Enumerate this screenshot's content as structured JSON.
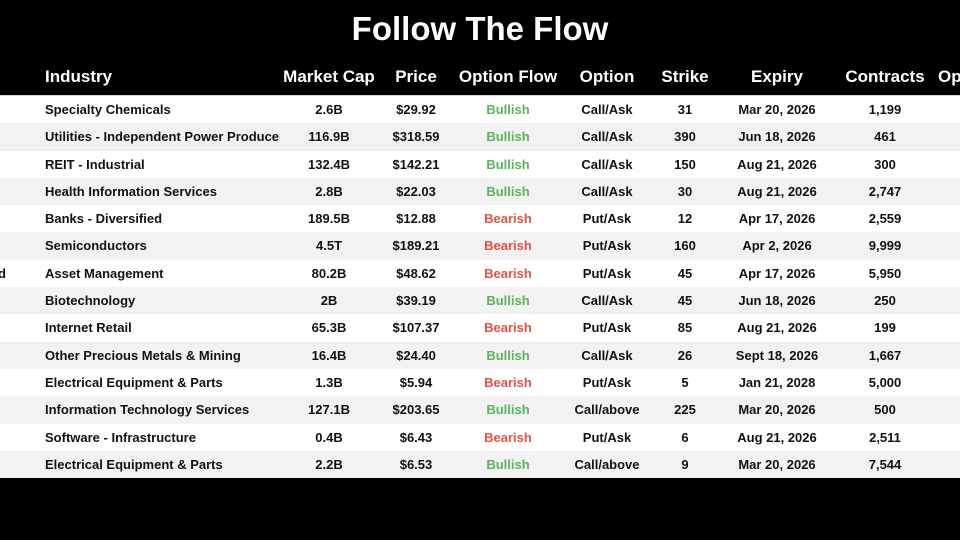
{
  "title": "Follow The Flow",
  "colors": {
    "bullish": "#5cb35c",
    "bearish": "#e0534a",
    "background": "#000000",
    "row_alt": "#f2f2f2"
  },
  "headers": {
    "industry": "Industry",
    "market_cap": "Market Cap",
    "price": "Price",
    "option_flow": "Option Flow",
    "option": "Option",
    "strike": "Strike",
    "expiry": "Expiry",
    "contracts": "Contracts",
    "partial_next": "Op"
  },
  "rows": [
    {
      "left": "",
      "industry": "Specialty Chemicals",
      "market_cap": "2.6B",
      "price": "$29.92",
      "flow": "Bullish",
      "option": "Call/Ask",
      "strike": "31",
      "expiry": "Mar 20, 2026",
      "contracts": "1,199"
    },
    {
      "left": "",
      "industry": "Utilities - Independent Power Producer",
      "market_cap": "116.9B",
      "price": "$318.59",
      "flow": "Bullish",
      "option": "Call/Ask",
      "strike": "390",
      "expiry": "Jun 18, 2026",
      "contracts": "461"
    },
    {
      "left": "",
      "industry": "REIT - Industrial",
      "market_cap": "132.4B",
      "price": "$142.21",
      "flow": "Bullish",
      "option": "Call/Ask",
      "strike": "150",
      "expiry": "Aug 21, 2026",
      "contracts": "300"
    },
    {
      "left": "",
      "industry": "Health Information Services",
      "market_cap": "2.8B",
      "price": "$22.03",
      "flow": "Bullish",
      "option": "Call/Ask",
      "strike": "30",
      "expiry": "Aug 21, 2026",
      "contracts": "2,747"
    },
    {
      "left": "",
      "industry": "Banks - Diversified",
      "market_cap": "189.5B",
      "price": "$12.88",
      "flow": "Bearish",
      "option": "Put/Ask",
      "strike": "12",
      "expiry": "Apr 17, 2026",
      "contracts": "2,559"
    },
    {
      "left": "",
      "industry": "Semiconductors",
      "market_cap": "4.5T",
      "price": "$189.21",
      "flow": "Bearish",
      "option": "Put/Ask",
      "strike": "160",
      "expiry": "Apr 2, 2026",
      "contracts": "9,999"
    },
    {
      "left": "d",
      "industry": "Asset Management",
      "market_cap": "80.2B",
      "price": "$48.62",
      "flow": "Bearish",
      "option": "Put/Ask",
      "strike": "45",
      "expiry": "Apr 17, 2026",
      "contracts": "5,950"
    },
    {
      "left": "",
      "industry": "Biotechnology",
      "market_cap": "2B",
      "price": "$39.19",
      "flow": "Bullish",
      "option": "Call/Ask",
      "strike": "45",
      "expiry": "Jun 18, 2026",
      "contracts": "250"
    },
    {
      "left": "",
      "industry": "Internet Retail",
      "market_cap": "65.3B",
      "price": "$107.37",
      "flow": "Bearish",
      "option": "Put/Ask",
      "strike": "85",
      "expiry": "Aug 21, 2026",
      "contracts": "199"
    },
    {
      "left": "",
      "industry": "Other Precious Metals & Mining",
      "market_cap": "16.4B",
      "price": "$24.40",
      "flow": "Bullish",
      "option": "Call/Ask",
      "strike": "26",
      "expiry": "Sept 18, 2026",
      "contracts": "1,667"
    },
    {
      "left": "",
      "industry": "Electrical Equipment & Parts",
      "market_cap": "1.3B",
      "price": "$5.94",
      "flow": "Bearish",
      "option": "Put/Ask",
      "strike": "5",
      "expiry": "Jan 21, 2028",
      "contracts": "5,000"
    },
    {
      "left": "",
      "industry": "Information Technology Services",
      "market_cap": "127.1B",
      "price": "$203.65",
      "flow": "Bullish",
      "option": "Call/above",
      "strike": "225",
      "expiry": "Mar 20, 2026",
      "contracts": "500"
    },
    {
      "left": "",
      "industry": "Software - Infrastructure",
      "market_cap": "0.4B",
      "price": "$6.43",
      "flow": "Bearish",
      "option": "Put/Ask",
      "strike": "6",
      "expiry": "Aug 21, 2026",
      "contracts": "2,511"
    },
    {
      "left": "",
      "industry": "Electrical Equipment & Parts",
      "market_cap": "2.2B",
      "price": "$6.53",
      "flow": "Bullish",
      "option": "Call/above",
      "strike": "9",
      "expiry": "Mar 20, 2026",
      "contracts": "7,544"
    }
  ]
}
